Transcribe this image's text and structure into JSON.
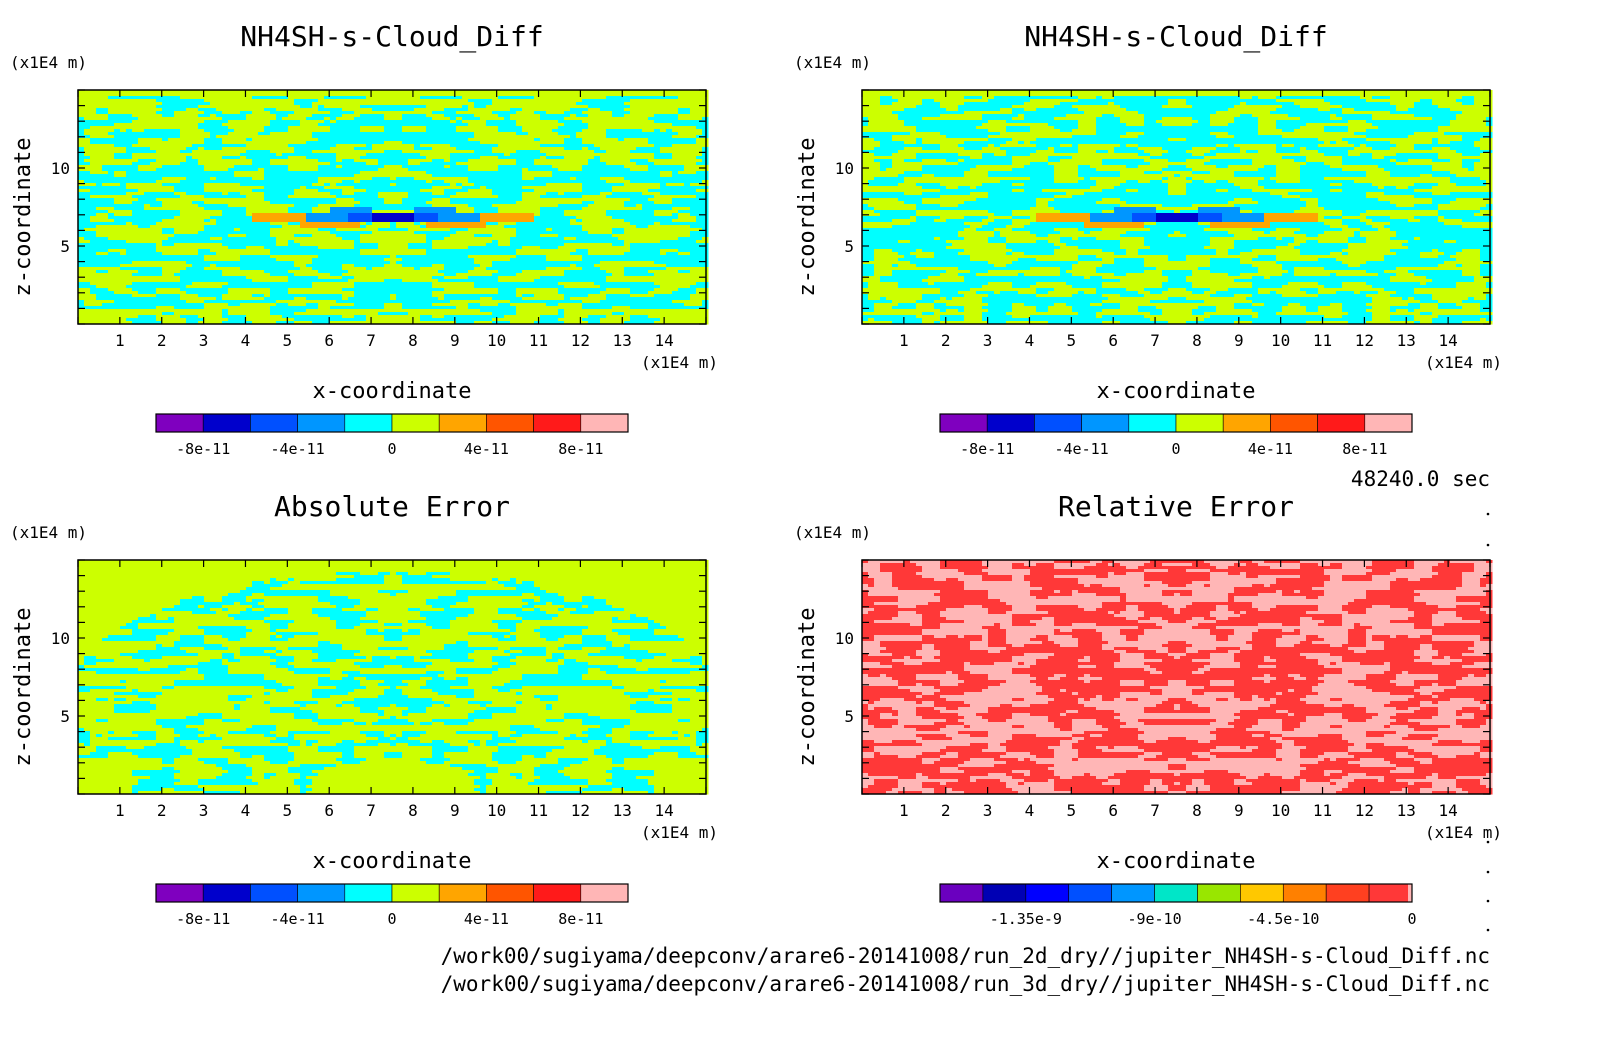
{
  "time_label": "48240.0 sec",
  "file_paths": [
    "/work00/sugiyama/deepconv/arare6-20141008/run_2d_dry//jupiter_NH4SH-s-Cloud_Diff.nc",
    "/work00/sugiyama/deepconv/arare6-20141008/run_3d_dry//jupiter_NH4SH-s-Cloud_Diff.nc"
  ],
  "colors": {
    "diff_scale": [
      "#7f00bf",
      "#0000cc",
      "#0050ff",
      "#0096ff",
      "#00ffff",
      "#ccff00",
      "#ffa500",
      "#ff5500",
      "#ff1a1a",
      "#ffb6b6"
    ],
    "rel_scale": [
      "#6a00bf",
      "#0000b4",
      "#0000ff",
      "#0050ff",
      "#0096ff",
      "#00e6c8",
      "#99e600",
      "#ffc800",
      "#ff8000",
      "#ff4020",
      "#ff3838"
    ]
  },
  "chart_data": [
    {
      "type": "heatmap",
      "title": "NH4SH-s-Cloud_Diff",
      "xlabel": "x-coordinate",
      "ylabel": "z-coordinate",
      "x_unit": "(x1E4 m)",
      "y_unit": "(x1E4 m)",
      "xlim": [
        0,
        15
      ],
      "ylim": [
        0,
        15
      ],
      "xticks": [
        1,
        2,
        3,
        4,
        5,
        6,
        7,
        8,
        9,
        10,
        11,
        12,
        13,
        14
      ],
      "yticks": [
        5,
        10
      ],
      "colorbar": {
        "ticks": [
          "-8e-11",
          "-4e-11",
          "0",
          "4e-11",
          "8e-11"
        ],
        "levels": [
          -1e-10,
          -8e-11,
          -6e-11,
          -4e-11,
          -2e-11,
          0,
          2e-11,
          4e-11,
          6e-11,
          8e-11,
          1e-10
        ]
      },
      "field": "diff",
      "dominant_colors": [
        "#00ffff",
        "#ccff00"
      ]
    },
    {
      "type": "heatmap",
      "title": "NH4SH-s-Cloud_Diff",
      "xlabel": "x-coordinate",
      "ylabel": "z-coordinate",
      "x_unit": "(x1E4 m)",
      "y_unit": "(x1E4 m)",
      "xlim": [
        0,
        15
      ],
      "ylim": [
        0,
        15
      ],
      "xticks": [
        1,
        2,
        3,
        4,
        5,
        6,
        7,
        8,
        9,
        10,
        11,
        12,
        13,
        14
      ],
      "yticks": [
        5,
        10
      ],
      "colorbar": {
        "ticks": [
          "-8e-11",
          "-4e-11",
          "0",
          "4e-11",
          "8e-11"
        ],
        "levels": [
          -1e-10,
          -8e-11,
          -6e-11,
          -4e-11,
          -2e-11,
          0,
          2e-11,
          4e-11,
          6e-11,
          8e-11,
          1e-10
        ]
      },
      "field": "diff",
      "dominant_colors": [
        "#00ffff",
        "#ccff00"
      ]
    },
    {
      "type": "heatmap",
      "title": "Absolute Error",
      "xlabel": "x-coordinate",
      "ylabel": "z-coordinate",
      "x_unit": "(x1E4 m)",
      "y_unit": "(x1E4 m)",
      "xlim": [
        0,
        15
      ],
      "ylim": [
        0,
        15
      ],
      "xticks": [
        1,
        2,
        3,
        4,
        5,
        6,
        7,
        8,
        9,
        10,
        11,
        12,
        13,
        14
      ],
      "yticks": [
        5,
        10
      ],
      "colorbar": {
        "ticks": [
          "-8e-11",
          "-4e-11",
          "0",
          "4e-11",
          "8e-11"
        ],
        "levels": [
          -1e-10,
          -8e-11,
          -6e-11,
          -4e-11,
          -2e-11,
          0,
          2e-11,
          4e-11,
          6e-11,
          8e-11,
          1e-10
        ]
      },
      "field": "abs",
      "dominant_colors": [
        "#ccff00",
        "#00ffff"
      ]
    },
    {
      "type": "heatmap",
      "title": "Relative Error",
      "xlabel": "x-coordinate",
      "ylabel": "z-coordinate",
      "x_unit": "(x1E4 m)",
      "y_unit": "(x1E4 m)",
      "xlim": [
        0,
        15
      ],
      "ylim": [
        0,
        15
      ],
      "xticks": [
        1,
        2,
        3,
        4,
        5,
        6,
        7,
        8,
        9,
        10,
        11,
        12,
        13,
        14
      ],
      "yticks": [
        5,
        10
      ],
      "colorbar": {
        "ticks": [
          "-1.35e-9",
          "-9e-10",
          "-4.5e-10",
          "0"
        ],
        "levels": [
          -1.65e-09,
          -1.5e-09,
          -1.35e-09,
          -1.2e-09,
          -1.05e-09,
          -9e-10,
          -7.5e-10,
          -6e-10,
          -4.5e-10,
          -3e-10,
          -1.5e-10,
          0
        ]
      },
      "field": "rel",
      "dominant_colors": [
        "#ff3838",
        "#ffb6b6"
      ]
    }
  ]
}
